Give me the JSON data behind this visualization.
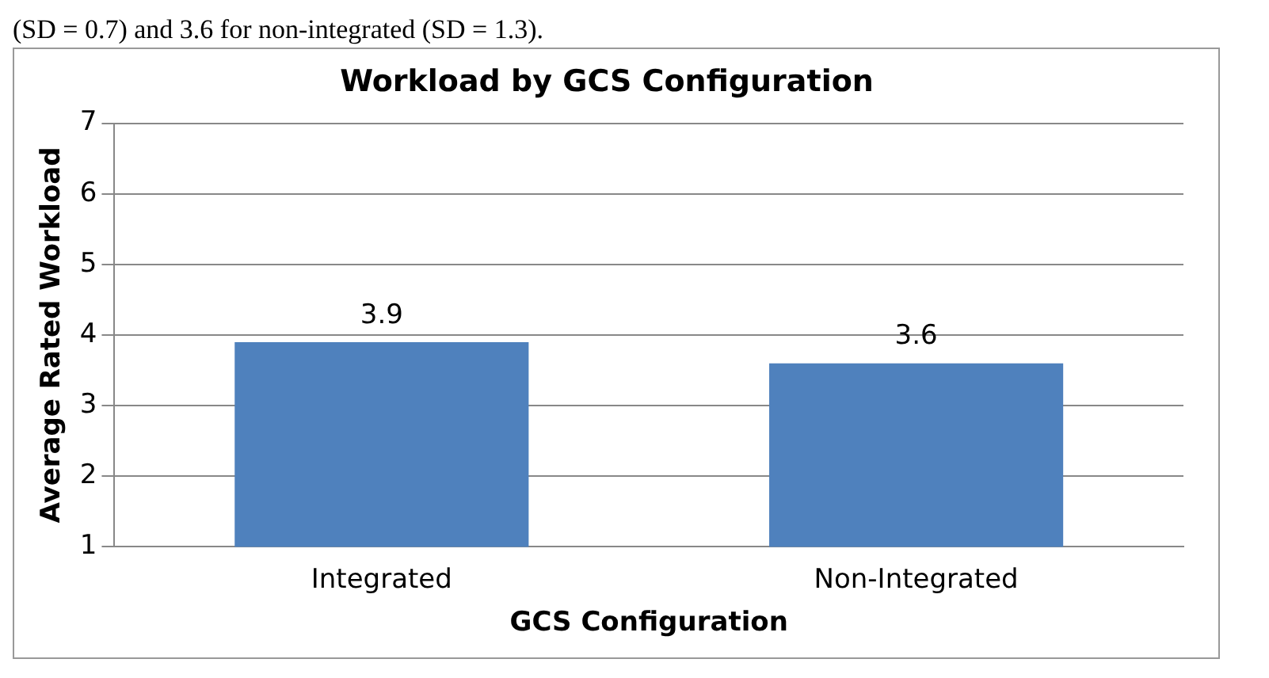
{
  "chart_data": {
    "type": "bar",
    "title": "Workload by GCS Configuration",
    "xlabel": "GCS Configuration",
    "ylabel": "Average Rated Workload",
    "annotations": [
      "(SD = 0.7) and 3.6 for non-integrated (SD = 1.3)."
    ],
    "categories": [
      "Integrated",
      "Non-Integrated"
    ],
    "values": [
      3.9,
      3.6
    ],
    "color": "#4f81bd",
    "ylim": [
      1,
      7
    ],
    "yticks": [
      1,
      2,
      3,
      4,
      5,
      6,
      7
    ],
    "grid": "y",
    "data_labels": true,
    "legend": false
  }
}
